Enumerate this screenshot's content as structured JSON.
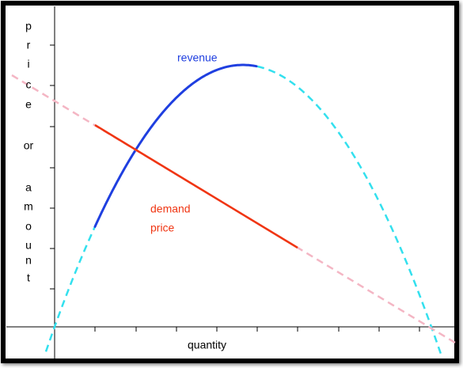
{
  "y_axis_label": {
    "lines": [
      "p",
      "r",
      "i",
      "c",
      "e",
      "or",
      "a",
      "m",
      "o",
      "u",
      "n",
      "t"
    ]
  },
  "x_axis_label": "quantity",
  "labels": {
    "revenue": "revenue",
    "demand": [
      "demand",
      "price"
    ]
  }
}
